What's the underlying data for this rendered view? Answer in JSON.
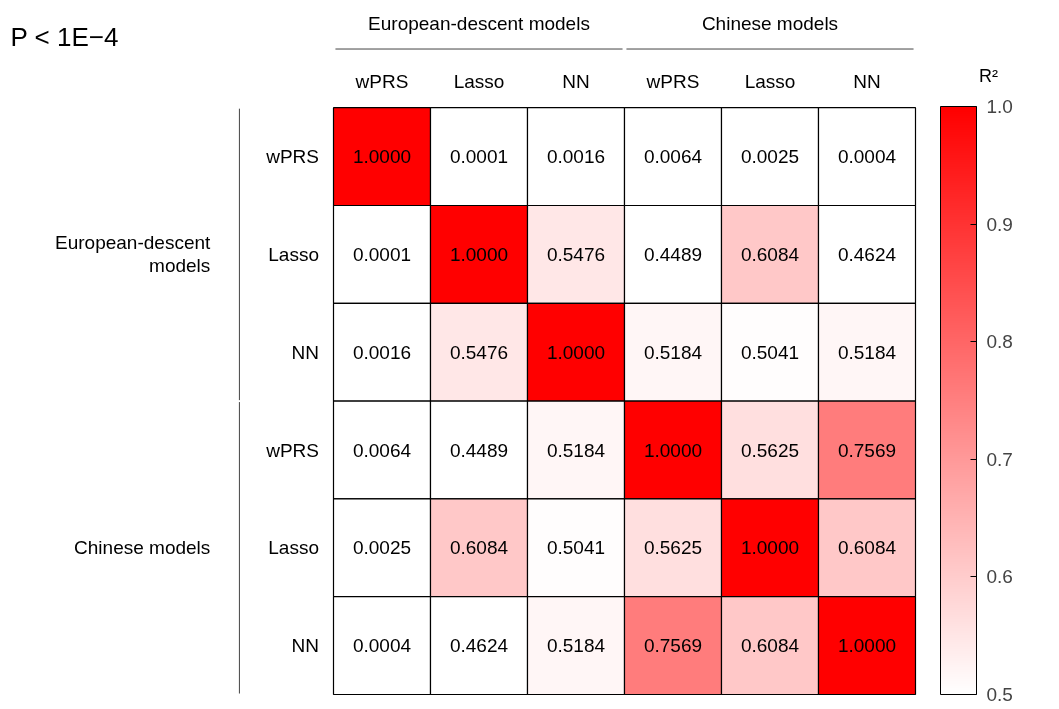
{
  "chart_data": {
    "type": "heatmap",
    "title": "P < 1E−4",
    "clabel": "R²",
    "annotations": [
      "European-descent models",
      "Chinese models",
      "European-descent\nmodels",
      "Chinese models"
    ],
    "categories": [
      "wPRS",
      "Lasso",
      "NN",
      "wPRS",
      "Lasso",
      "NN"
    ],
    "y_categories": [
      "wPRS",
      "Lasso",
      "NN",
      "wPRS",
      "Lasso",
      "NN"
    ],
    "cells": [
      [
        1.0,
        0.0001,
        0.0016,
        0.0064,
        0.0025,
        0.0004
      ],
      [
        0.0001,
        1.0,
        0.5476,
        0.4489,
        0.6084,
        0.4624
      ],
      [
        0.0016,
        0.5476,
        1.0,
        0.5184,
        0.5041,
        0.5184
      ],
      [
        0.0064,
        0.4489,
        0.5184,
        1.0,
        0.5625,
        0.7569
      ],
      [
        0.0025,
        0.6084,
        0.5041,
        0.5625,
        1.0,
        0.6084
      ],
      [
        0.0004,
        0.4624,
        0.5184,
        0.7569,
        0.6084,
        1.0
      ]
    ],
    "cell_labels": [
      [
        "1.0000",
        "0.0001",
        "0.0016",
        "0.0064",
        "0.0025",
        "0.0004"
      ],
      [
        "0.0001",
        "1.0000",
        "0.5476",
        "0.4489",
        "0.6084",
        "0.4624"
      ],
      [
        "0.0016",
        "0.5476",
        "1.0000",
        "0.5184",
        "0.5041",
        "0.5184"
      ],
      [
        "0.0064",
        "0.4489",
        "0.5184",
        "1.0000",
        "0.5625",
        "0.7569"
      ],
      [
        "0.0025",
        "0.6084",
        "0.5041",
        "0.5625",
        "1.0000",
        "0.6084"
      ],
      [
        "0.0004",
        "0.4624",
        "0.5184",
        "0.7569",
        "0.6084",
        "1.0000"
      ]
    ],
    "clim": [
      0.5,
      1.0
    ],
    "cticks": [
      0.5,
      0.6,
      0.7,
      0.8,
      0.9,
      {
        "value": 1.0,
        "label": "1.0"
      }
    ]
  }
}
